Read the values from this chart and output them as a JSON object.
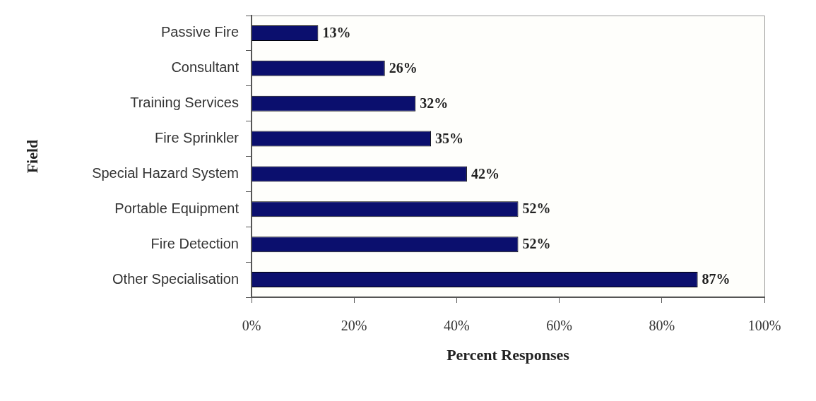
{
  "chart_data": {
    "type": "bar",
    "orientation": "horizontal",
    "categories": [
      "Passive Fire",
      "Consultant",
      "Training Services",
      "Fire Sprinkler",
      "Special Hazard System",
      "Portable Equipment",
      "Fire Detection",
      "Other Specialisation"
    ],
    "values": [
      13,
      26,
      32,
      35,
      42,
      52,
      52,
      87
    ],
    "value_labels": [
      "13%",
      "26%",
      "32%",
      "35%",
      "42%",
      "52%",
      "52%",
      "87%"
    ],
    "color": "#0b0f6e",
    "xlim": [
      0,
      100
    ],
    "xticks": [
      {
        "value": 0,
        "label": "0%"
      },
      {
        "value": 20,
        "label": "20%"
      },
      {
        "value": 40,
        "label": "40%"
      },
      {
        "value": 60,
        "label": "60%"
      },
      {
        "value": 80,
        "label": "80%"
      },
      {
        "value": 100,
        "label": "100%"
      }
    ],
    "xlabel": "Percent Responses",
    "ylabel": "Field",
    "grid": false
  }
}
